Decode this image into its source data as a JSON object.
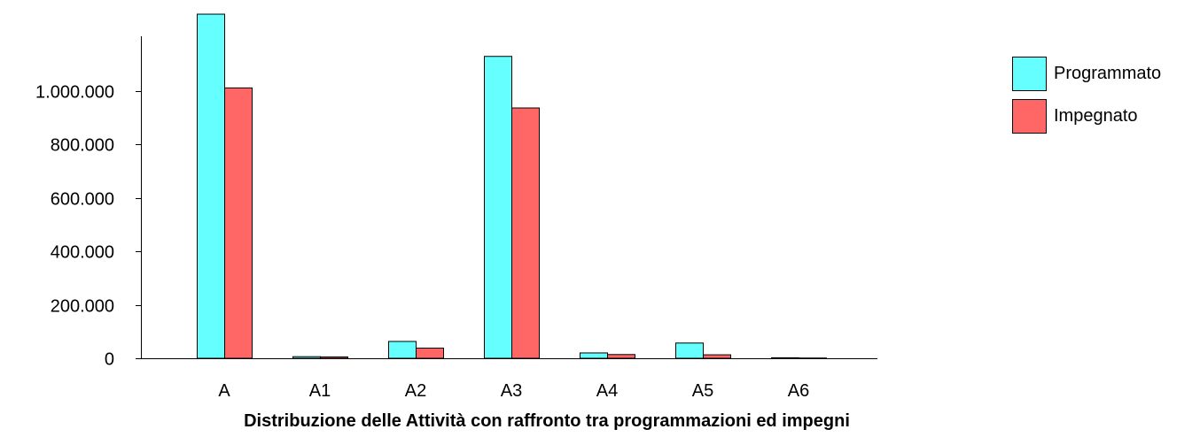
{
  "chart_data": {
    "type": "bar",
    "title": "Distribuzione delle Attività con raffronto tra programmazioni ed impegni",
    "xlabel": "",
    "ylabel": "",
    "categories": [
      "A",
      "A1",
      "A2",
      "A3",
      "A4",
      "A5",
      "A6"
    ],
    "series": [
      {
        "name": "Programmato",
        "color": "#66FFFF",
        "values": [
          1288000,
          6000,
          63000,
          1130000,
          20000,
          57000,
          2000
        ]
      },
      {
        "name": "Impegnato",
        "color": "#FF6666",
        "values": [
          1012000,
          5000,
          38000,
          937000,
          14000,
          13000,
          1000
        ]
      }
    ],
    "ylim": [
      0,
      1200000
    ],
    "yticks": [
      0,
      200000,
      400000,
      600000,
      800000,
      1000000
    ],
    "ytick_labels": [
      "0",
      "200.000",
      "400.000",
      "600.000",
      "800.000",
      "1.000.000"
    ],
    "grid": false,
    "legend_position": "top-right"
  }
}
